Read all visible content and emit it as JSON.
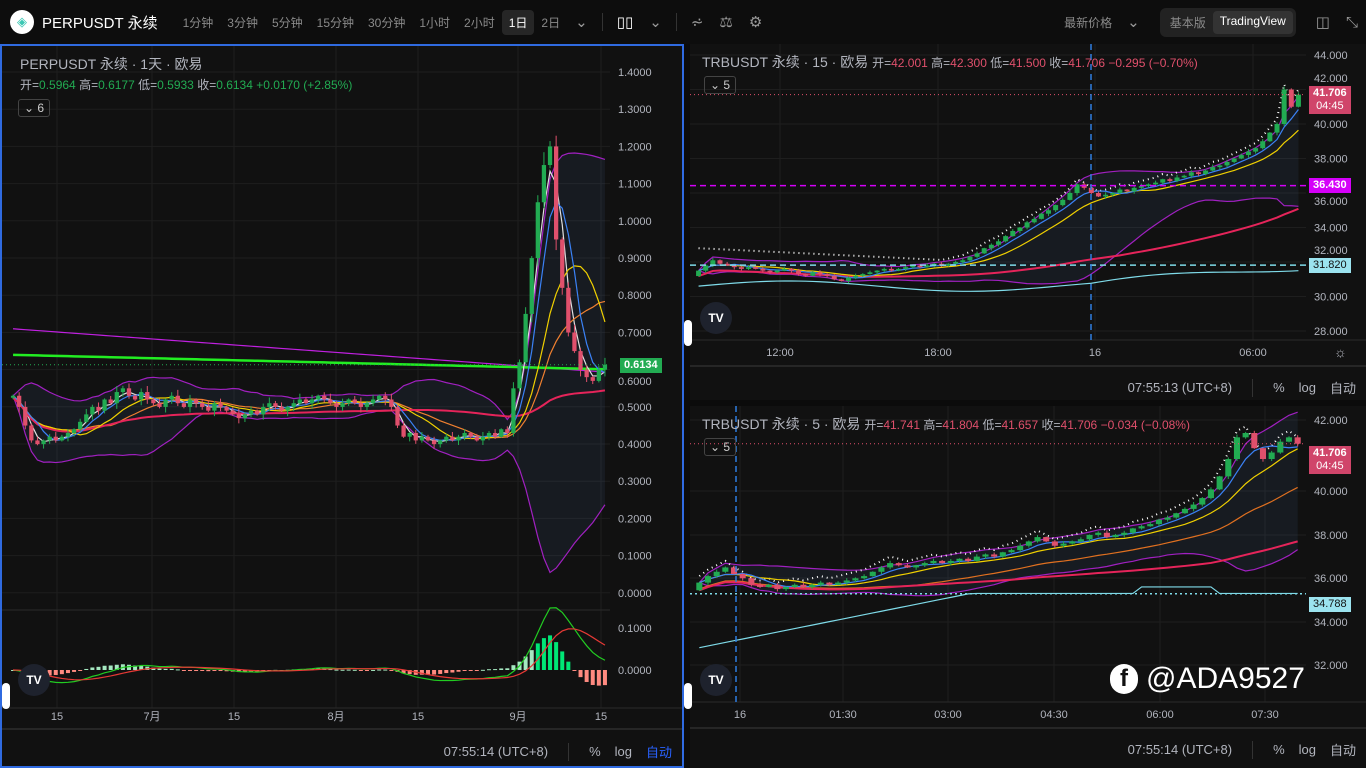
{
  "header": {
    "symbol": "PERPUSDT 永续",
    "timeframes": [
      "1分钟",
      "3分钟",
      "5分钟",
      "15分钟",
      "30分钟",
      "1小时",
      "2小时",
      "1日",
      "2日"
    ],
    "active_timeframe": "1日",
    "price_type": "最新价格",
    "modes": [
      "基本版",
      "TradingView"
    ],
    "active_mode": "TradingView"
  },
  "colors": {
    "up": "#22ab52",
    "down": "#e0506c",
    "accent": "#2962ff",
    "magenta": "#d500f9",
    "cyan": "#7fdbe9"
  },
  "left": {
    "title": "PERPUSDT 永续 · 1天 · 欧易",
    "o_label": "开=",
    "o": "0.5964",
    "h_label": "高=",
    "h": "0.6177",
    "l_label": "低=",
    "l": "0.5933",
    "c_label": "收=",
    "c": "0.6134",
    "change": "+0.0170 (+2.85%)",
    "indicators": "6",
    "price_ticks": [
      "1.4000",
      "1.3000",
      "1.2000",
      "1.1000",
      "1.0000",
      "0.9000",
      "0.8000",
      "0.7000",
      "0.6000",
      "0.5000",
      "0.4000",
      "0.3000",
      "0.2000",
      "0.1000",
      "0.0000"
    ],
    "macd_ticks": [
      "0.1000",
      "0.0000"
    ],
    "last_price": "0.6134",
    "time_ticks": [
      "15",
      "7月",
      "15",
      "8月",
      "15",
      "9月",
      "15"
    ],
    "closes": [
      0.53,
      0.5,
      0.45,
      0.41,
      0.4,
      0.41,
      0.42,
      0.41,
      0.42,
      0.43,
      0.44,
      0.46,
      0.48,
      0.5,
      0.49,
      0.52,
      0.51,
      0.54,
      0.55,
      0.53,
      0.52,
      0.54,
      0.52,
      0.51,
      0.5,
      0.52,
      0.53,
      0.51,
      0.5,
      0.52,
      0.51,
      0.5,
      0.49,
      0.51,
      0.5,
      0.49,
      0.48,
      0.47,
      0.48,
      0.49,
      0.48,
      0.5,
      0.51,
      0.5,
      0.49,
      0.5,
      0.51,
      0.52,
      0.51,
      0.52,
      0.53,
      0.52,
      0.51,
      0.5,
      0.51,
      0.52,
      0.51,
      0.5,
      0.51,
      0.52,
      0.53,
      0.52,
      0.5,
      0.45,
      0.42,
      0.43,
      0.41,
      0.42,
      0.41,
      0.4,
      0.41,
      0.42,
      0.41,
      0.42,
      0.43,
      0.42,
      0.41,
      0.42,
      0.43,
      0.42,
      0.44,
      0.43,
      0.55,
      0.62,
      0.75,
      0.9,
      1.05,
      1.15,
      1.2,
      0.95,
      0.82,
      0.7,
      0.65,
      0.6,
      0.58,
      0.57,
      0.6,
      0.6134
    ],
    "time": "07:55:14 (UTC+8)",
    "pct": "%",
    "log": "log",
    "auto": "自动"
  },
  "rtop": {
    "title": "TRBUSDT 永续 · 15 · 欧易",
    "o_label": "开=",
    "o": "42.001",
    "h_label": "高=",
    "h": "42.300",
    "l_label": "低=",
    "l": "41.500",
    "c_label": "收=",
    "c": "41.706",
    "change": "−0.295 (−0.70%)",
    "indicators": "5",
    "price_ticks": [
      "44.000",
      "42.000",
      "40.000",
      "38.000",
      "36.000",
      "34.000",
      "32.000",
      "30.000",
      "28.000"
    ],
    "last_price": "41.706",
    "countdown": "04:45",
    "level_magenta": "36.430",
    "level_cyan": "31.820",
    "time_ticks": [
      "12:00",
      "18:00",
      "16",
      "06:00"
    ],
    "closes": [
      31.5,
      31.8,
      32.1,
      31.9,
      31.8,
      31.7,
      31.6,
      31.7,
      31.6,
      31.5,
      31.4,
      31.5,
      31.6,
      31.5,
      31.3,
      31.2,
      31.4,
      31.3,
      31.2,
      31.0,
      30.9,
      31.1,
      31.2,
      31.3,
      31.4,
      31.5,
      31.6,
      31.5,
      31.6,
      31.7,
      31.8,
      31.7,
      31.8,
      31.9,
      31.8,
      31.9,
      32.0,
      32.1,
      32.3,
      32.5,
      32.8,
      33.0,
      33.2,
      33.5,
      33.8,
      34.0,
      34.3,
      34.5,
      34.8,
      35.0,
      35.3,
      35.6,
      36.0,
      36.5,
      36.3,
      36.0,
      35.8,
      35.9,
      36.0,
      36.2,
      36.1,
      36.3,
      36.4,
      36.5,
      36.6,
      36.8,
      36.7,
      36.9,
      37.0,
      37.2,
      37.1,
      37.3,
      37.5,
      37.6,
      37.8,
      38.0,
      38.2,
      38.4,
      38.6,
      39.0,
      39.5,
      40.0,
      42.0,
      41.0,
      41.706
    ],
    "time": "07:55:13 (UTC+8)",
    "pct": "%",
    "log": "log",
    "auto": "自动"
  },
  "rbot": {
    "title": "TRBUSDT 永续 · 5 · 欧易",
    "o_label": "开=",
    "o": "41.741",
    "h_label": "高=",
    "h": "41.804",
    "l_label": "低=",
    "l": "41.657",
    "c_label": "收=",
    "c": "41.706",
    "change": "−0.034 (−0.08%)",
    "indicators": "5",
    "price_ticks": [
      "42.000",
      "40.000",
      "38.000",
      "36.000",
      "34.000",
      "32.000"
    ],
    "last_price": "41.706",
    "countdown": "04:45",
    "level_cyan": "34.788",
    "time_ticks": [
      "16",
      "01:30",
      "03:00",
      "04:30",
      "06:00",
      "07:30"
    ],
    "closes": [
      35.3,
      35.6,
      35.8,
      36.0,
      35.7,
      35.5,
      35.2,
      35.1,
      35.2,
      35.0,
      35.1,
      35.2,
      35.1,
      35.2,
      35.3,
      35.2,
      35.3,
      35.4,
      35.5,
      35.6,
      35.8,
      36.0,
      36.2,
      36.1,
      36.0,
      36.1,
      36.2,
      36.3,
      36.2,
      36.3,
      36.4,
      36.3,
      36.5,
      36.6,
      36.5,
      36.7,
      36.8,
      37.0,
      37.2,
      37.4,
      37.2,
      37.0,
      37.1,
      37.2,
      37.3,
      37.5,
      37.6,
      37.4,
      37.5,
      37.6,
      37.8,
      37.9,
      38.0,
      38.2,
      38.3,
      38.5,
      38.7,
      38.9,
      39.2,
      39.6,
      40.2,
      41.0,
      42.0,
      42.2,
      41.5,
      41.0,
      41.3,
      41.8,
      42.0,
      41.706
    ],
    "time": "07:55:14 (UTC+8)",
    "pct": "%",
    "log": "log",
    "auto": "自动"
  },
  "watermark": "@ADA9527"
}
